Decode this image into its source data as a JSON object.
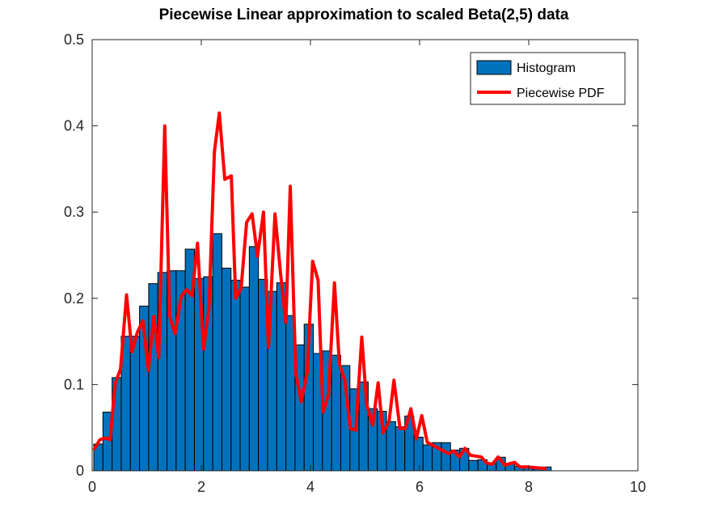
{
  "chart_data": {
    "type": "bar+line",
    "title": "Piecewise Linear approximation to scaled Beta(2,5) data",
    "xlabel": "",
    "ylabel": "",
    "xlim": [
      0,
      10
    ],
    "ylim": [
      0,
      0.5
    ],
    "xticks": [
      "0",
      "2",
      "4",
      "6",
      "8",
      "10"
    ],
    "yticks": [
      "0",
      "0.1",
      "0.2",
      "0.3",
      "0.4",
      "0.5"
    ],
    "grid": false,
    "legend_placement": "top-right",
    "colors": {
      "histogram": "#0072BD",
      "piecewise": "#FF0000",
      "bar_edge": "#000000"
    },
    "histogram": {
      "name": "Histogram",
      "bin_start": 0.03,
      "bin_width": 0.1676,
      "values": [
        0.031,
        0.068,
        0.108,
        0.156,
        0.156,
        0.191,
        0.217,
        0.23,
        0.232,
        0.232,
        0.257,
        0.223,
        0.225,
        0.275,
        0.235,
        0.221,
        0.213,
        0.26,
        0.222,
        0.208,
        0.218,
        0.18,
        0.146,
        0.17,
        0.136,
        0.139,
        0.134,
        0.122,
        0.095,
        0.103,
        0.072,
        0.069,
        0.057,
        0.051,
        0.0635,
        0.039,
        0.03,
        0.0326,
        0.0326,
        0.024,
        0.026,
        0.012,
        0.0128,
        0.008,
        0.0157,
        0.008,
        0.005,
        0.004,
        0.002,
        0.0044
      ]
    },
    "piecewise": {
      "name": "Piecewise PDF",
      "x": [
        0.03,
        0.14,
        0.24,
        0.33,
        0.42,
        0.52,
        0.63,
        0.73,
        0.83,
        0.93,
        1.03,
        1.13,
        1.22,
        1.33,
        1.42,
        1.52,
        1.63,
        1.73,
        1.83,
        1.93,
        2.04,
        2.14,
        2.24,
        2.33,
        2.43,
        2.55,
        2.63,
        2.73,
        2.83,
        2.93,
        3.03,
        3.14,
        3.23,
        3.35,
        3.45,
        3.55,
        3.63,
        3.73,
        3.83,
        3.94,
        4.04,
        4.14,
        4.23,
        4.33,
        4.44,
        4.53,
        4.63,
        4.73,
        4.83,
        4.94,
        5.03,
        5.14,
        5.24,
        5.33,
        5.44,
        5.53,
        5.64,
        5.74,
        5.84,
        5.94,
        6.04,
        6.14,
        6.53,
        6.63,
        6.73,
        6.83,
        6.93,
        7.13,
        7.23,
        7.33,
        7.44,
        7.56,
        7.74,
        7.84,
        7.99,
        8.33
      ],
      "y": [
        0.024,
        0.036,
        0.038,
        0.036,
        0.101,
        0.118,
        0.204,
        0.138,
        0.161,
        0.174,
        0.116,
        0.179,
        0.131,
        0.4,
        0.179,
        0.159,
        0.202,
        0.21,
        0.203,
        0.264,
        0.141,
        0.189,
        0.37,
        0.415,
        0.338,
        0.342,
        0.2,
        0.212,
        0.288,
        0.298,
        0.249,
        0.3,
        0.143,
        0.298,
        0.23,
        0.172,
        0.33,
        0.114,
        0.08,
        0.114,
        0.243,
        0.221,
        0.068,
        0.088,
        0.218,
        0.124,
        0.105,
        0.049,
        0.047,
        0.155,
        0.077,
        0.053,
        0.102,
        0.044,
        0.057,
        0.105,
        0.049,
        0.049,
        0.072,
        0.037,
        0.064,
        0.033,
        0.02,
        0.023,
        0.016,
        0.026,
        0.018,
        0.016,
        0.009,
        0.0075,
        0.016,
        0.0066,
        0.0097,
        0.0044,
        0.0044,
        0.0025
      ]
    }
  }
}
